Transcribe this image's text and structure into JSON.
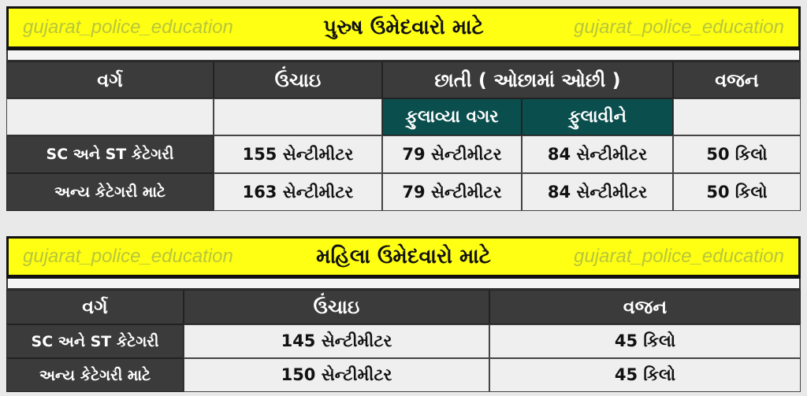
{
  "watermark": "gujarat_police_education",
  "male": {
    "title": "પુરુષ ઉમેદવારો માટે",
    "headers": [
      "વર્ગ",
      "ઉંચાઇ",
      "છાતી ( ઓછામાં ઓછી )",
      "વજન"
    ],
    "chest_sub": [
      "ફુલાવ્યા વગર",
      "ફુલાવીને"
    ],
    "rows": [
      [
        "SC અને ST કેટેગરી",
        "155 સેન્ટીમીટર",
        "79 સેન્ટીમીટર",
        "84 સેન્ટીમીટર",
        "50 કિલો"
      ],
      [
        "અન્ય કેટેગરી માટે",
        "163 સેન્ટીમીટર",
        "79 સેન્ટીમીટર",
        "84 સેન્ટીમીટર",
        "50 કિલો"
      ]
    ]
  },
  "female": {
    "title": "મહિલા ઉમેદવારો માટે",
    "headers": [
      "વર્ગ",
      "ઉંચાઇ",
      "વજન"
    ],
    "rows": [
      [
        "SC અને ST કેટેગરી",
        "145 સેન્ટીમીટર",
        "45 કિલો"
      ],
      [
        "અન્ય કેટેગરી માટે",
        "150 સેન્ટીમીટર",
        "45 કિલો"
      ]
    ]
  },
  "colors": {
    "banner": "#ffff14",
    "header": "#3b3b3b",
    "teal": "#0b4e4e",
    "cell": "#efefef"
  }
}
